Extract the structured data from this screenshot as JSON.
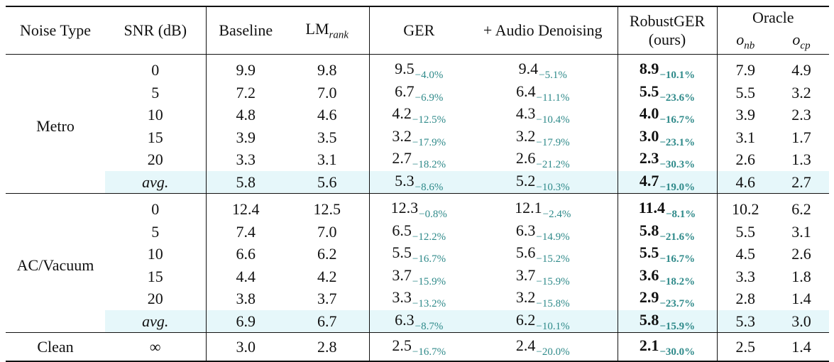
{
  "headers": {
    "noise_type": "Noise Type",
    "snr": "SNR (dB)",
    "baseline": "Baseline",
    "lm_rank_base": "LM",
    "lm_rank_sub": "rank",
    "ger": "GER",
    "audio_denoising": "+ Audio Denoising",
    "robustger_line1": "RobustGER",
    "robustger_line2": "(ours)",
    "oracle": "Oracle",
    "o_nb_base": "o",
    "o_nb_sub": "nb",
    "o_cp_base": "o",
    "o_cp_sub": "cp"
  },
  "groups": [
    {
      "noise": "Metro",
      "rows": [
        {
          "snr": "0",
          "baseline": "9.9",
          "lm": "9.8",
          "ger": "9.5",
          "ger_d": "−4.0%",
          "ad": "9.4",
          "ad_d": "−5.1%",
          "rg": "8.9",
          "rg_d": "−10.1%",
          "onb": "7.9",
          "ocp": "4.9"
        },
        {
          "snr": "5",
          "baseline": "7.2",
          "lm": "7.0",
          "ger": "6.7",
          "ger_d": "−6.9%",
          "ad": "6.4",
          "ad_d": "−11.1%",
          "rg": "5.5",
          "rg_d": "−23.6%",
          "onb": "5.5",
          "ocp": "3.2"
        },
        {
          "snr": "10",
          "baseline": "4.8",
          "lm": "4.6",
          "ger": "4.2",
          "ger_d": "−12.5%",
          "ad": "4.3",
          "ad_d": "−10.4%",
          "rg": "4.0",
          "rg_d": "−16.7%",
          "onb": "3.9",
          "ocp": "2.3"
        },
        {
          "snr": "15",
          "baseline": "3.9",
          "lm": "3.5",
          "ger": "3.2",
          "ger_d": "−17.9%",
          "ad": "3.2",
          "ad_d": "−17.9%",
          "rg": "3.0",
          "rg_d": "−23.1%",
          "onb": "3.1",
          "ocp": "1.7"
        },
        {
          "snr": "20",
          "baseline": "3.3",
          "lm": "3.1",
          "ger": "2.7",
          "ger_d": "−18.2%",
          "ad": "2.6",
          "ad_d": "−21.2%",
          "rg": "2.3",
          "rg_d": "−30.3%",
          "onb": "2.6",
          "ocp": "1.3"
        }
      ],
      "avg": {
        "label": "avg.",
        "baseline": "5.8",
        "lm": "5.6",
        "ger": "5.3",
        "ger_d": "−8.6%",
        "ad": "5.2",
        "ad_d": "−10.3%",
        "rg": "4.7",
        "rg_d": "−19.0%",
        "onb": "4.6",
        "ocp": "2.7"
      }
    },
    {
      "noise": "AC/Vacuum",
      "rows": [
        {
          "snr": "0",
          "baseline": "12.4",
          "lm": "12.5",
          "ger": "12.3",
          "ger_d": "−0.8%",
          "ad": "12.1",
          "ad_d": "−2.4%",
          "rg": "11.4",
          "rg_d": "−8.1%",
          "onb": "10.2",
          "ocp": "6.2"
        },
        {
          "snr": "5",
          "baseline": "7.4",
          "lm": "7.0",
          "ger": "6.5",
          "ger_d": "−12.2%",
          "ad": "6.3",
          "ad_d": "−14.9%",
          "rg": "5.8",
          "rg_d": "−21.6%",
          "onb": "5.5",
          "ocp": "3.1"
        },
        {
          "snr": "10",
          "baseline": "6.6",
          "lm": "6.2",
          "ger": "5.5",
          "ger_d": "−16.7%",
          "ad": "5.6",
          "ad_d": "−15.2%",
          "rg": "5.5",
          "rg_d": "−16.7%",
          "onb": "4.5",
          "ocp": "2.6"
        },
        {
          "snr": "15",
          "baseline": "4.4",
          "lm": "4.2",
          "ger": "3.7",
          "ger_d": "−15.9%",
          "ad": "3.7",
          "ad_d": "−15.9%",
          "rg": "3.6",
          "rg_d": "−18.2%",
          "onb": "3.3",
          "ocp": "1.8"
        },
        {
          "snr": "20",
          "baseline": "3.8",
          "lm": "3.7",
          "ger": "3.3",
          "ger_d": "−13.2%",
          "ad": "3.2",
          "ad_d": "−15.8%",
          "rg": "2.9",
          "rg_d": "−23.7%",
          "onb": "2.8",
          "ocp": "1.4"
        }
      ],
      "avg": {
        "label": "avg.",
        "baseline": "6.9",
        "lm": "6.7",
        "ger": "6.3",
        "ger_d": "−8.7%",
        "ad": "6.2",
        "ad_d": "−10.1%",
        "rg": "5.8",
        "rg_d": "−15.9%",
        "onb": "5.3",
        "ocp": "3.0"
      }
    }
  ],
  "clean": {
    "noise": "Clean",
    "snr": "∞",
    "baseline": "3.0",
    "lm": "2.8",
    "ger": "2.5",
    "ger_d": "−16.7%",
    "ad": "2.4",
    "ad_d": "−20.0%",
    "rg": "2.1",
    "rg_d": "−30.0%",
    "onb": "2.5",
    "ocp": "1.4"
  },
  "colors": {
    "delta": "#2f8a8a",
    "avg_highlight": "#e6f7fa"
  }
}
